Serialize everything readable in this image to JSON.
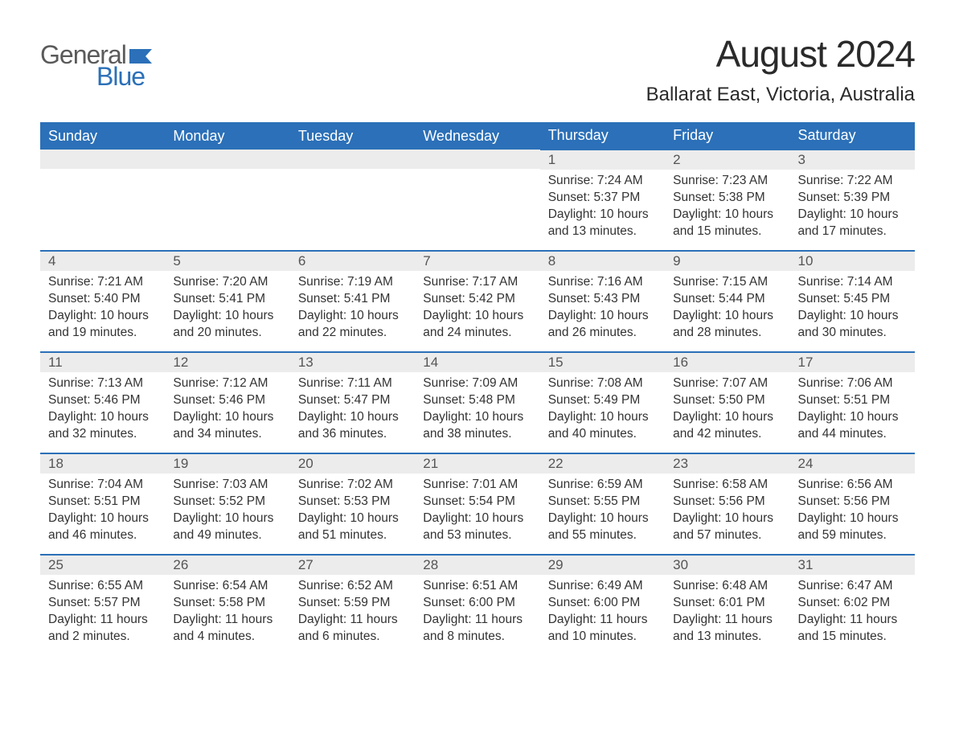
{
  "brand": {
    "word1": "General",
    "word2": "Blue",
    "word1_color": "#5a5a5a",
    "word2_color": "#2b70b8",
    "flag_color": "#2b70b8"
  },
  "title": "August 2024",
  "location": "Ballarat East, Victoria, Australia",
  "colors": {
    "header_bg": "#2b70b8",
    "header_text": "#ffffff",
    "daynum_bg": "#ececec",
    "daynum_text": "#555555",
    "cell_border_top": "#2b70b8",
    "body_text": "#333333",
    "page_bg": "#ffffff"
  },
  "typography": {
    "title_fontsize": 46,
    "location_fontsize": 24,
    "dayheader_fontsize": 18,
    "daynum_fontsize": 17,
    "body_fontsize": 15.5,
    "font_family": "Arial"
  },
  "layout": {
    "columns": 7,
    "rows": 5,
    "leading_blanks": 4
  },
  "day_headers": [
    "Sunday",
    "Monday",
    "Tuesday",
    "Wednesday",
    "Thursday",
    "Friday",
    "Saturday"
  ],
  "days": [
    {
      "n": "1",
      "sunrise": "Sunrise: 7:24 AM",
      "sunset": "Sunset: 5:37 PM",
      "daylight": "Daylight: 10 hours and 13 minutes."
    },
    {
      "n": "2",
      "sunrise": "Sunrise: 7:23 AM",
      "sunset": "Sunset: 5:38 PM",
      "daylight": "Daylight: 10 hours and 15 minutes."
    },
    {
      "n": "3",
      "sunrise": "Sunrise: 7:22 AM",
      "sunset": "Sunset: 5:39 PM",
      "daylight": "Daylight: 10 hours and 17 minutes."
    },
    {
      "n": "4",
      "sunrise": "Sunrise: 7:21 AM",
      "sunset": "Sunset: 5:40 PM",
      "daylight": "Daylight: 10 hours and 19 minutes."
    },
    {
      "n": "5",
      "sunrise": "Sunrise: 7:20 AM",
      "sunset": "Sunset: 5:41 PM",
      "daylight": "Daylight: 10 hours and 20 minutes."
    },
    {
      "n": "6",
      "sunrise": "Sunrise: 7:19 AM",
      "sunset": "Sunset: 5:41 PM",
      "daylight": "Daylight: 10 hours and 22 minutes."
    },
    {
      "n": "7",
      "sunrise": "Sunrise: 7:17 AM",
      "sunset": "Sunset: 5:42 PM",
      "daylight": "Daylight: 10 hours and 24 minutes."
    },
    {
      "n": "8",
      "sunrise": "Sunrise: 7:16 AM",
      "sunset": "Sunset: 5:43 PM",
      "daylight": "Daylight: 10 hours and 26 minutes."
    },
    {
      "n": "9",
      "sunrise": "Sunrise: 7:15 AM",
      "sunset": "Sunset: 5:44 PM",
      "daylight": "Daylight: 10 hours and 28 minutes."
    },
    {
      "n": "10",
      "sunrise": "Sunrise: 7:14 AM",
      "sunset": "Sunset: 5:45 PM",
      "daylight": "Daylight: 10 hours and 30 minutes."
    },
    {
      "n": "11",
      "sunrise": "Sunrise: 7:13 AM",
      "sunset": "Sunset: 5:46 PM",
      "daylight": "Daylight: 10 hours and 32 minutes."
    },
    {
      "n": "12",
      "sunrise": "Sunrise: 7:12 AM",
      "sunset": "Sunset: 5:46 PM",
      "daylight": "Daylight: 10 hours and 34 minutes."
    },
    {
      "n": "13",
      "sunrise": "Sunrise: 7:11 AM",
      "sunset": "Sunset: 5:47 PM",
      "daylight": "Daylight: 10 hours and 36 minutes."
    },
    {
      "n": "14",
      "sunrise": "Sunrise: 7:09 AM",
      "sunset": "Sunset: 5:48 PM",
      "daylight": "Daylight: 10 hours and 38 minutes."
    },
    {
      "n": "15",
      "sunrise": "Sunrise: 7:08 AM",
      "sunset": "Sunset: 5:49 PM",
      "daylight": "Daylight: 10 hours and 40 minutes."
    },
    {
      "n": "16",
      "sunrise": "Sunrise: 7:07 AM",
      "sunset": "Sunset: 5:50 PM",
      "daylight": "Daylight: 10 hours and 42 minutes."
    },
    {
      "n": "17",
      "sunrise": "Sunrise: 7:06 AM",
      "sunset": "Sunset: 5:51 PM",
      "daylight": "Daylight: 10 hours and 44 minutes."
    },
    {
      "n": "18",
      "sunrise": "Sunrise: 7:04 AM",
      "sunset": "Sunset: 5:51 PM",
      "daylight": "Daylight: 10 hours and 46 minutes."
    },
    {
      "n": "19",
      "sunrise": "Sunrise: 7:03 AM",
      "sunset": "Sunset: 5:52 PM",
      "daylight": "Daylight: 10 hours and 49 minutes."
    },
    {
      "n": "20",
      "sunrise": "Sunrise: 7:02 AM",
      "sunset": "Sunset: 5:53 PM",
      "daylight": "Daylight: 10 hours and 51 minutes."
    },
    {
      "n": "21",
      "sunrise": "Sunrise: 7:01 AM",
      "sunset": "Sunset: 5:54 PM",
      "daylight": "Daylight: 10 hours and 53 minutes."
    },
    {
      "n": "22",
      "sunrise": "Sunrise: 6:59 AM",
      "sunset": "Sunset: 5:55 PM",
      "daylight": "Daylight: 10 hours and 55 minutes."
    },
    {
      "n": "23",
      "sunrise": "Sunrise: 6:58 AM",
      "sunset": "Sunset: 5:56 PM",
      "daylight": "Daylight: 10 hours and 57 minutes."
    },
    {
      "n": "24",
      "sunrise": "Sunrise: 6:56 AM",
      "sunset": "Sunset: 5:56 PM",
      "daylight": "Daylight: 10 hours and 59 minutes."
    },
    {
      "n": "25",
      "sunrise": "Sunrise: 6:55 AM",
      "sunset": "Sunset: 5:57 PM",
      "daylight": "Daylight: 11 hours and 2 minutes."
    },
    {
      "n": "26",
      "sunrise": "Sunrise: 6:54 AM",
      "sunset": "Sunset: 5:58 PM",
      "daylight": "Daylight: 11 hours and 4 minutes."
    },
    {
      "n": "27",
      "sunrise": "Sunrise: 6:52 AM",
      "sunset": "Sunset: 5:59 PM",
      "daylight": "Daylight: 11 hours and 6 minutes."
    },
    {
      "n": "28",
      "sunrise": "Sunrise: 6:51 AM",
      "sunset": "Sunset: 6:00 PM",
      "daylight": "Daylight: 11 hours and 8 minutes."
    },
    {
      "n": "29",
      "sunrise": "Sunrise: 6:49 AM",
      "sunset": "Sunset: 6:00 PM",
      "daylight": "Daylight: 11 hours and 10 minutes."
    },
    {
      "n": "30",
      "sunrise": "Sunrise: 6:48 AM",
      "sunset": "Sunset: 6:01 PM",
      "daylight": "Daylight: 11 hours and 13 minutes."
    },
    {
      "n": "31",
      "sunrise": "Sunrise: 6:47 AM",
      "sunset": "Sunset: 6:02 PM",
      "daylight": "Daylight: 11 hours and 15 minutes."
    }
  ]
}
